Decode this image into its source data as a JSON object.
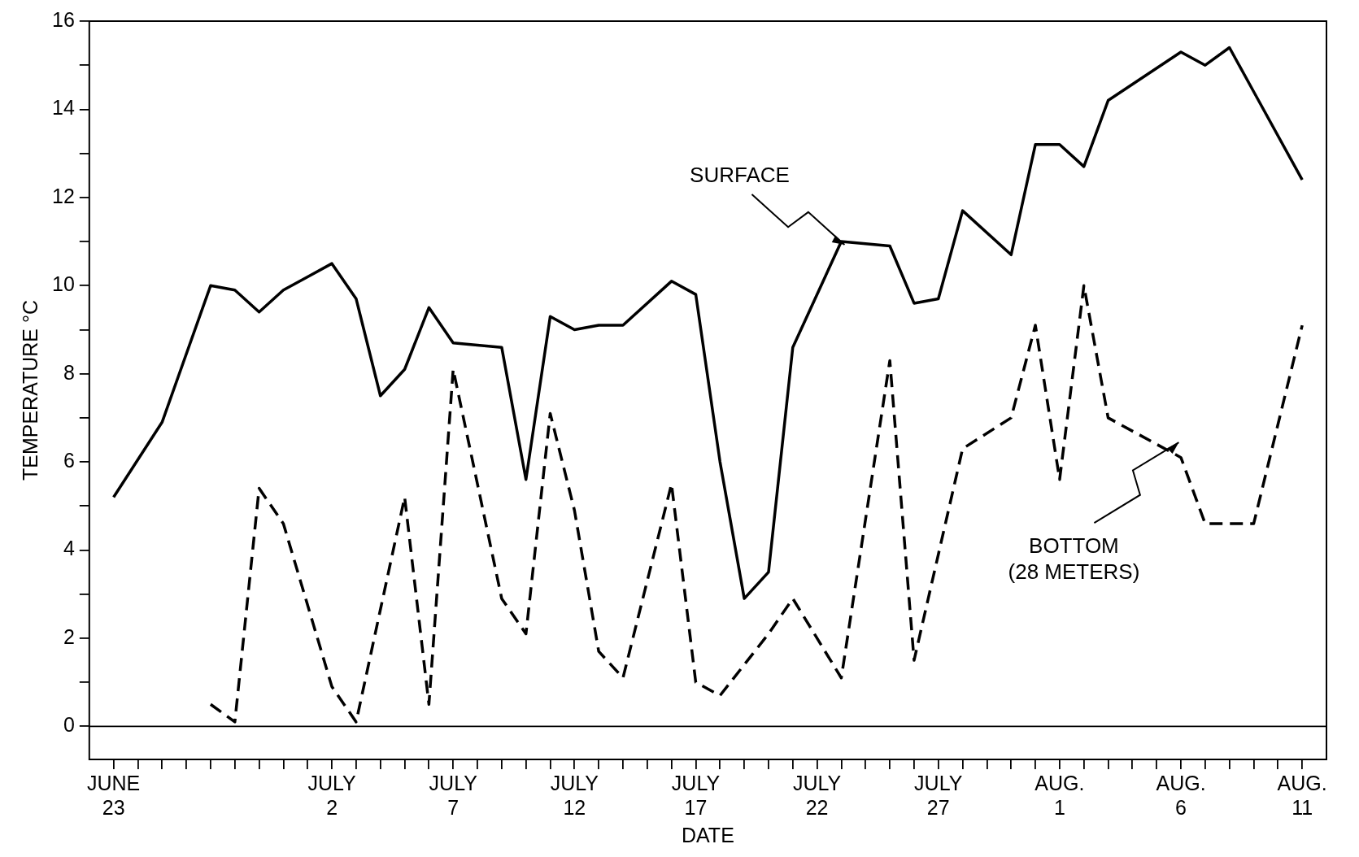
{
  "chart_data": {
    "type": "line",
    "xlabel": "DATE",
    "ylabel": "TEMPERATURE °C",
    "xlim": [
      "--06-22",
      "--08-12"
    ],
    "xticks": [
      {
        "value": "--06-23",
        "label": "JUNE 23"
      },
      {
        "value": "--06-24",
        "label": null
      },
      {
        "value": "--06-25",
        "label": null
      },
      {
        "value": "--06-26",
        "label": null
      },
      {
        "value": "--06-27",
        "label": null
      },
      {
        "value": "--06-28",
        "label": null
      },
      {
        "value": "--06-29",
        "label": null
      },
      {
        "value": "--06-30",
        "label": null
      },
      {
        "value": "--07-01",
        "label": null
      },
      {
        "value": "--07-02",
        "label": "JULY 2"
      },
      {
        "value": "--07-03",
        "label": null
      },
      {
        "value": "--07-04",
        "label": null
      },
      {
        "value": "--07-05",
        "label": null
      },
      {
        "value": "--07-06",
        "label": null
      },
      {
        "value": "--07-07",
        "label": "JULY 7"
      },
      {
        "value": "--07-08",
        "label": null
      },
      {
        "value": "--07-09",
        "label": null
      },
      {
        "value": "--07-10",
        "label": null
      },
      {
        "value": "--07-11",
        "label": null
      },
      {
        "value": "--07-12",
        "label": "JULY 12"
      },
      {
        "value": "--07-13",
        "label": null
      },
      {
        "value": "--07-14",
        "label": null
      },
      {
        "value": "--07-15",
        "label": null
      },
      {
        "value": "--07-16",
        "label": null
      },
      {
        "value": "--07-17",
        "label": "JULY 17"
      },
      {
        "value": "--07-18",
        "label": null
      },
      {
        "value": "--07-19",
        "label": null
      },
      {
        "value": "--07-20",
        "label": null
      },
      {
        "value": "--07-21",
        "label": null
      },
      {
        "value": "--07-22",
        "label": "JULY 22"
      },
      {
        "value": "--07-23",
        "label": null
      },
      {
        "value": "--07-24",
        "label": null
      },
      {
        "value": "--07-25",
        "label": null
      },
      {
        "value": "--07-26",
        "label": null
      },
      {
        "value": "--07-27",
        "label": "JULY 27"
      },
      {
        "value": "--07-28",
        "label": null
      },
      {
        "value": "--07-29",
        "label": null
      },
      {
        "value": "--07-30",
        "label": null
      },
      {
        "value": "--07-31",
        "label": null
      },
      {
        "value": "--08-01",
        "label": "AUG. 1"
      },
      {
        "value": "--08-02",
        "label": null
      },
      {
        "value": "--08-03",
        "label": null
      },
      {
        "value": "--08-04",
        "label": null
      },
      {
        "value": "--08-05",
        "label": null
      },
      {
        "value": "--08-06",
        "label": "AUG. 6"
      },
      {
        "value": "--08-07",
        "label": null
      },
      {
        "value": "--08-08",
        "label": null
      },
      {
        "value": "--08-09",
        "label": null
      },
      {
        "value": "--08-10",
        "label": null
      },
      {
        "value": "--08-11",
        "label": "AUG. 11"
      }
    ],
    "ylim": [
      -0.75,
      16
    ],
    "yticks": [
      0,
      {
        "value": 1,
        "label": null
      },
      2,
      {
        "value": 3,
        "label": null
      },
      4,
      {
        "value": 5,
        "label": null
      },
      6,
      {
        "value": 7,
        "label": null
      },
      8,
      {
        "value": 9,
        "label": null
      },
      10,
      {
        "value": 11,
        "label": null
      },
      12,
      {
        "value": 13,
        "label": null
      },
      14,
      {
        "value": 15,
        "label": null
      },
      16
    ],
    "grid": false,
    "legend": false,
    "marker": "none",
    "ref_lines": [
      {
        "axis": "y",
        "value": 0,
        "color": "#000000"
      }
    ],
    "series": [
      {
        "color": "#000000",
        "line_style": "solid",
        "x": [
          "--06-23",
          "--06-25",
          "--06-27",
          "--06-28",
          "--06-29",
          "--06-30",
          "--07-01",
          "--07-02",
          "--07-03",
          "--07-04",
          "--07-05",
          "--07-06",
          "--07-07",
          "--07-09",
          "--07-10",
          "--07-11",
          "--07-12",
          "--07-13",
          "--07-14",
          "--07-16",
          "--07-17",
          "--07-18",
          "--07-19",
          "--07-20",
          "--07-21",
          "--07-23",
          "--07-25",
          "--07-26",
          "--07-27",
          "--07-28",
          "--07-30",
          "--07-31",
          "--08-01",
          "--08-02",
          "--08-03",
          "--08-06",
          "--08-07",
          "--08-08",
          "--08-09",
          "--08-11"
        ],
        "values": [
          5.2,
          6.9,
          10.0,
          9.9,
          9.4,
          9.9,
          10.2,
          10.5,
          9.7,
          7.5,
          8.1,
          9.5,
          8.7,
          8.6,
          5.6,
          9.3,
          9.0,
          9.1,
          9.1,
          10.1,
          9.8,
          6.0,
          2.9,
          3.5,
          8.6,
          11.0,
          10.9,
          9.6,
          9.7,
          11.7,
          10.7,
          13.2,
          13.2,
          12.7,
          14.2,
          15.3,
          15.0,
          15.4,
          14.4,
          12.4
        ]
      },
      {
        "color": "#000000",
        "line_style": "dashed",
        "x": [
          "--06-27",
          "--06-28",
          "--06-29",
          "--06-30",
          "--07-02",
          "--07-03",
          "--07-05",
          "--07-06",
          "--07-07",
          "--07-09",
          "--07-10",
          "--07-11",
          "--07-12",
          "--07-13",
          "--07-14",
          "--07-16",
          "--07-17",
          "--07-18",
          "--07-20",
          "--07-21",
          "--07-23",
          "--07-25",
          "--07-26",
          "--07-28",
          "--07-30",
          "--07-31",
          "--08-01",
          "--08-02",
          "--08-03",
          "--08-06",
          "--08-07",
          "--08-09",
          "--08-11"
        ],
        "values": [
          0.5,
          0.1,
          5.4,
          4.6,
          0.9,
          0.1,
          5.2,
          0.5,
          8.1,
          2.9,
          2.1,
          7.1,
          4.9,
          1.7,
          1.1,
          5.5,
          1.0,
          0.7,
          2.1,
          2.9,
          1.1,
          8.3,
          1.5,
          6.3,
          7.0,
          9.1,
          5.6,
          10.0,
          7.0,
          6.1,
          4.6,
          4.6,
          9.1
        ]
      }
    ],
    "annotations": [
      {
        "text": "SURFACE",
        "x": "--07-23",
        "y": 11.0
      },
      "BOTTOM\n(28 METERS)"
    ]
  }
}
